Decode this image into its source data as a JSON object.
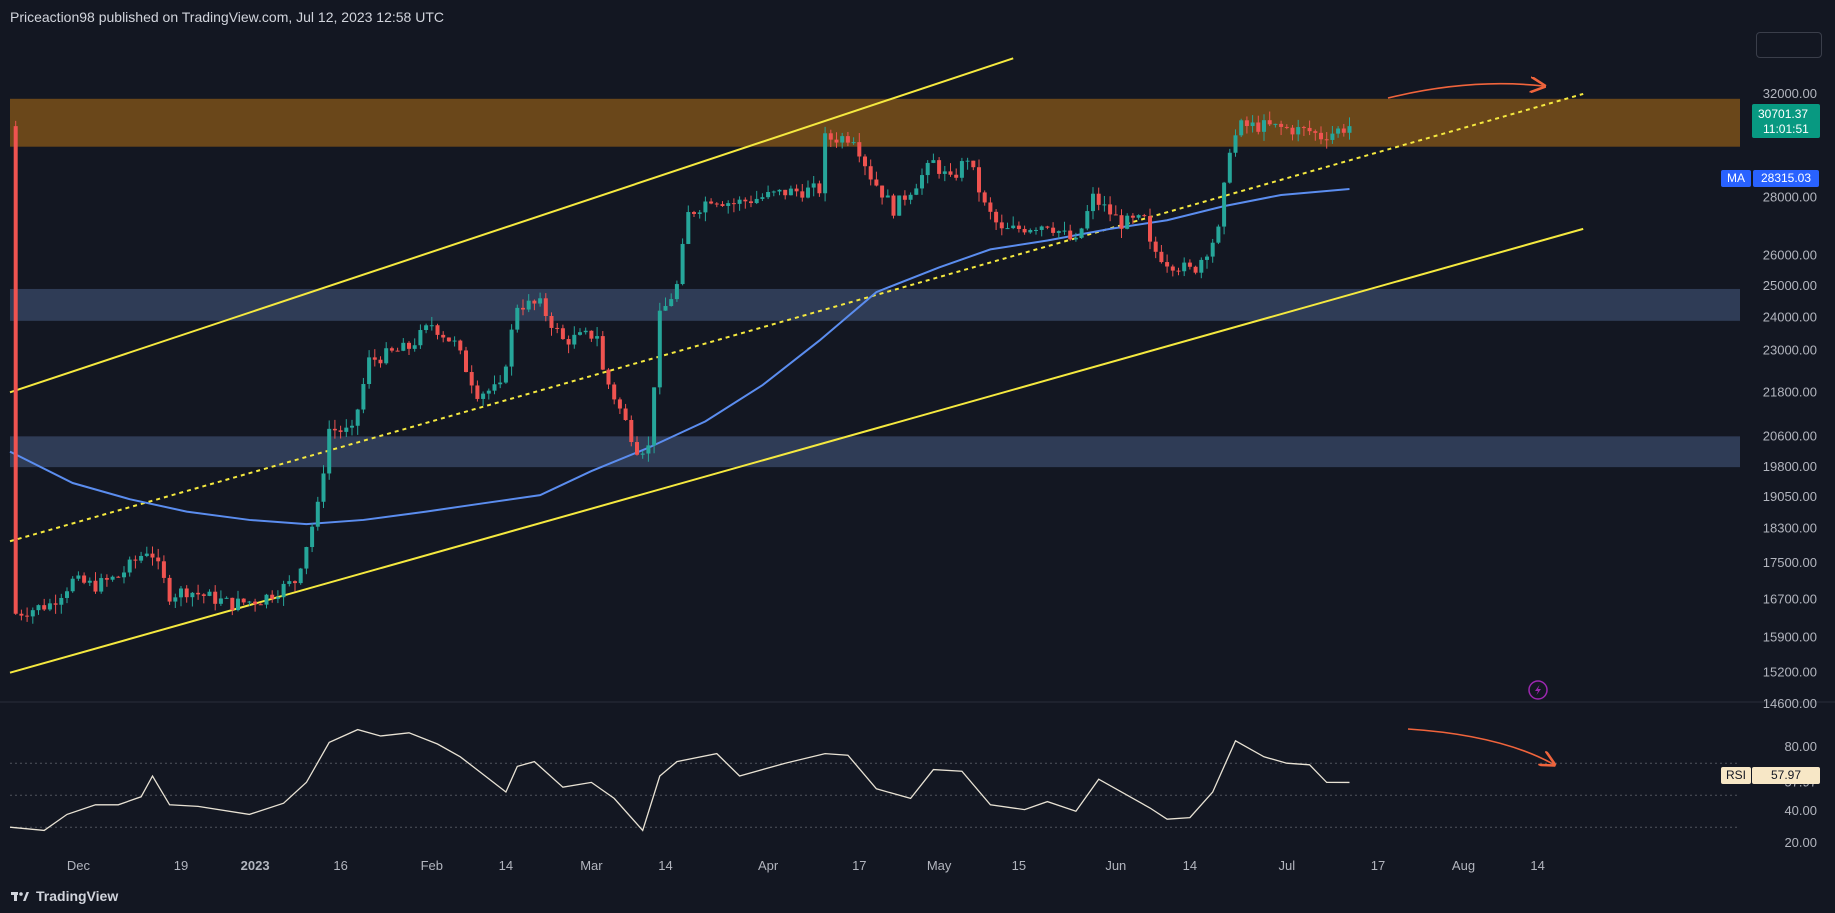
{
  "header": {
    "publisher_line": "Priceaction98 published on TradingView.com, Jul 12, 2023 12:58 UTC"
  },
  "footer": {
    "brand": "TradingView"
  },
  "colors": {
    "background": "#131722",
    "up": "#26a69a",
    "down": "#ef5350",
    "ma": "#5b8def",
    "channel": "#f5e93f",
    "resistance_zone": "#7a5019",
    "support_zone": "#3a4a68",
    "rsi_line": "#e8e2d4",
    "arrow": "#f0643c",
    "price_tag": "#089981"
  },
  "tags": {
    "price": "30701.37",
    "countdown": "11:01:51",
    "ma_label": "MA",
    "ma_value": "28315.03",
    "rsi_label": "RSI",
    "rsi_value": "57.97"
  },
  "chart_data": [
    {
      "type": "candlestick",
      "title": "",
      "overlay_series": [
        {
          "name": "MA",
          "last_value": 28315.03
        }
      ],
      "x_ticks": [
        "Dec",
        "19",
        "2023",
        "16",
        "Feb",
        "14",
        "Mar",
        "14",
        "Apr",
        "17",
        "May",
        "15",
        "Jun",
        "14",
        "Jul",
        "17",
        "Aug",
        "14"
      ],
      "y_ticks": [
        "32000.00",
        "28000.00",
        "26000.00",
        "25000.00",
        "24000.00",
        "23000.00",
        "21800.00",
        "20600.00",
        "19800.00",
        "19050.00",
        "18300.00",
        "17500.00",
        "16700.00",
        "15900.00",
        "15200.00",
        "14600.00"
      ],
      "scale": "log",
      "ylim": [
        14600,
        33000
      ],
      "last_price": 30701.37,
      "zones": [
        {
          "name": "resistance",
          "low": 29900,
          "high": 31800
        },
        {
          "name": "support",
          "low": 23900,
          "high": 24900
        },
        {
          "name": "support",
          "low": 19800,
          "high": 20600
        }
      ],
      "candle_path": [
        [
          "2022-11-20",
          16400
        ],
        [
          "2022-11-26",
          16600
        ],
        [
          "2022-11-30",
          17100
        ],
        [
          "2022-12-04",
          17000
        ],
        [
          "2022-12-08",
          17200
        ],
        [
          "2022-12-13",
          17800
        ],
        [
          "2022-12-14",
          17700
        ],
        [
          "2022-12-17",
          16800
        ],
        [
          "2022-12-20",
          16900
        ],
        [
          "2022-12-28",
          16600
        ],
        [
          "2023-01-02",
          16700
        ],
        [
          "2023-01-08",
          17100
        ],
        [
          "2023-01-12",
          18800
        ],
        [
          "2023-01-14",
          20800
        ],
        [
          "2023-01-18",
          20700
        ],
        [
          "2023-01-21",
          22700
        ],
        [
          "2023-01-28",
          23100
        ],
        [
          "2023-02-01",
          23800
        ],
        [
          "2023-02-05",
          23200
        ],
        [
          "2023-02-09",
          21800
        ],
        [
          "2023-02-13",
          21900
        ],
        [
          "2023-02-16",
          24400
        ],
        [
          "2023-02-20",
          24400
        ],
        [
          "2023-02-24",
          23300
        ],
        [
          "2023-03-02",
          23500
        ],
        [
          "2023-03-03",
          22400
        ],
        [
          "2023-03-09",
          20300
        ],
        [
          "2023-03-11",
          20300
        ],
        [
          "2023-03-13",
          24000
        ],
        [
          "2023-03-16",
          25000
        ],
        [
          "2023-03-18",
          27400
        ],
        [
          "2023-03-22",
          28000
        ],
        [
          "2023-03-26",
          27800
        ],
        [
          "2023-04-04",
          28200
        ],
        [
          "2023-04-10",
          28300
        ],
        [
          "2023-04-11",
          30200
        ],
        [
          "2023-04-16",
          30300
        ],
        [
          "2023-04-19",
          28800
        ],
        [
          "2023-04-23",
          27600
        ],
        [
          "2023-04-26",
          28300
        ],
        [
          "2023-04-30",
          29300
        ],
        [
          "2023-05-03",
          28600
        ],
        [
          "2023-05-06",
          29500
        ],
        [
          "2023-05-09",
          27700
        ],
        [
          "2023-05-12",
          26800
        ],
        [
          "2023-05-20",
          27100
        ],
        [
          "2023-05-25",
          26400
        ],
        [
          "2023-05-28",
          28000
        ],
        [
          "2023-06-02",
          27100
        ],
        [
          "2023-06-06",
          27200
        ],
        [
          "2023-06-07",
          26300
        ],
        [
          "2023-06-10",
          25800
        ],
        [
          "2023-06-14",
          25500
        ],
        [
          "2023-06-15",
          25600
        ],
        [
          "2023-06-19",
          26800
        ],
        [
          "2023-06-21",
          29900
        ],
        [
          "2023-06-23",
          30700
        ],
        [
          "2023-06-27",
          30700
        ],
        [
          "2023-07-01",
          30600
        ],
        [
          "2023-07-05",
          30500
        ],
        [
          "2023-07-07",
          30300
        ],
        [
          "2023-07-12",
          30701.37
        ]
      ],
      "ma_series": [
        [
          "2022-11-19",
          20200
        ],
        [
          "2022-11-30",
          19400
        ],
        [
          "2022-12-10",
          19000
        ],
        [
          "2022-12-20",
          18700
        ],
        [
          "2022-12-31",
          18500
        ],
        [
          "2023-01-10",
          18400
        ],
        [
          "2023-01-20",
          18500
        ],
        [
          "2023-01-31",
          18700
        ],
        [
          "2023-02-10",
          18900
        ],
        [
          "2023-02-20",
          19100
        ],
        [
          "2023-03-01",
          19700
        ],
        [
          "2023-03-11",
          20300
        ],
        [
          "2023-03-21",
          21000
        ],
        [
          "2023-03-31",
          22000
        ],
        [
          "2023-04-10",
          23300
        ],
        [
          "2023-04-20",
          24800
        ],
        [
          "2023-05-01",
          25600
        ],
        [
          "2023-05-10",
          26200
        ],
        [
          "2023-05-20",
          26500
        ],
        [
          "2023-05-31",
          26900
        ],
        [
          "2023-06-10",
          27200
        ],
        [
          "2023-06-20",
          27700
        ],
        [
          "2023-06-30",
          28100
        ],
        [
          "2023-07-12",
          28315.03
        ]
      ],
      "channel_lines": [
        {
          "name": "upper",
          "points": [
            [
              "2022-11-19",
              21800
            ],
            [
              "2023-05-14",
              33500
            ]
          ]
        },
        {
          "name": "middle",
          "points": [
            [
              "2022-11-19",
              18000
            ],
            [
              "2023-08-22",
              32000
            ]
          ]
        },
        {
          "name": "lower",
          "points": [
            [
              "2022-11-19",
              15200
            ],
            [
              "2023-08-22",
              26900
            ]
          ]
        }
      ]
    },
    {
      "type": "line",
      "title": "",
      "series": [
        {
          "name": "RSI",
          "last_value": 57.97
        }
      ],
      "y_ticks": [
        "80.00",
        "57.97",
        "40.00",
        "20.00"
      ],
      "ylim": [
        17,
        92
      ],
      "reference_lines": [
        70,
        50,
        30
      ],
      "values": [
        [
          "2022-11-19",
          30
        ],
        [
          "2022-11-25",
          28
        ],
        [
          "2022-11-29",
          38
        ],
        [
          "2022-12-04",
          44
        ],
        [
          "2022-12-08",
          44
        ],
        [
          "2022-12-12",
          49
        ],
        [
          "2022-12-14",
          62
        ],
        [
          "2022-12-17",
          44
        ],
        [
          "2022-12-22",
          43
        ],
        [
          "2022-12-31",
          38
        ],
        [
          "2023-01-06",
          45
        ],
        [
          "2023-01-10",
          58
        ],
        [
          "2023-01-14",
          83
        ],
        [
          "2023-01-19",
          91
        ],
        [
          "2023-01-23",
          87
        ],
        [
          "2023-01-28",
          89
        ],
        [
          "2023-02-02",
          82
        ],
        [
          "2023-02-06",
          74
        ],
        [
          "2023-02-10",
          63
        ],
        [
          "2023-02-14",
          52
        ],
        [
          "2023-02-16",
          68
        ],
        [
          "2023-02-19",
          71
        ],
        [
          "2023-02-24",
          55
        ],
        [
          "2023-03-01",
          58
        ],
        [
          "2023-03-05",
          48
        ],
        [
          "2023-03-10",
          28
        ],
        [
          "2023-03-13",
          62
        ],
        [
          "2023-03-16",
          71
        ],
        [
          "2023-03-23",
          76
        ],
        [
          "2023-03-27",
          62
        ],
        [
          "2023-04-04",
          70
        ],
        [
          "2023-04-11",
          76
        ],
        [
          "2023-04-15",
          75
        ],
        [
          "2023-04-20",
          54
        ],
        [
          "2023-04-26",
          48
        ],
        [
          "2023-04-30",
          66
        ],
        [
          "2023-05-05",
          65
        ],
        [
          "2023-05-10",
          44
        ],
        [
          "2023-05-16",
          41
        ],
        [
          "2023-05-20",
          46
        ],
        [
          "2023-05-25",
          40
        ],
        [
          "2023-05-29",
          60
        ],
        [
          "2023-06-03",
          50
        ],
        [
          "2023-06-07",
          42
        ],
        [
          "2023-06-10",
          35
        ],
        [
          "2023-06-14",
          36
        ],
        [
          "2023-06-18",
          52
        ],
        [
          "2023-06-22",
          84
        ],
        [
          "2023-06-27",
          74
        ],
        [
          "2023-07-01",
          70
        ],
        [
          "2023-07-05",
          69
        ],
        [
          "2023-07-08",
          58
        ],
        [
          "2023-07-12",
          57.97
        ]
      ]
    }
  ]
}
